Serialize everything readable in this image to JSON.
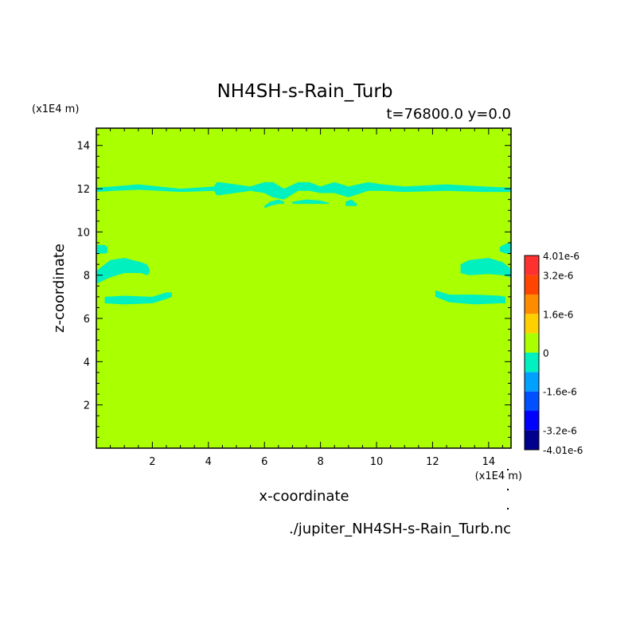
{
  "chart_data": {
    "type": "heatmap",
    "title": "NH4SH-s-Rain_Turb",
    "subtitle": "t=76800.0 y=0.0",
    "xlabel": "x-coordinate",
    "ylabel": "z-coordinate",
    "x_unit": "(x1E4 m)",
    "y_unit": "(x1E4 m)",
    "source_file": "./jupiter_NH4SH-s-Rain_Turb.nc",
    "xlim": [
      0,
      14.8
    ],
    "ylim": [
      0,
      14.8
    ],
    "xticks": [
      "2",
      "4",
      "6",
      "8",
      "10",
      "12",
      "14"
    ],
    "yticks": [
      "2",
      "4",
      "6",
      "8",
      "10",
      "12",
      "14"
    ],
    "background_level": 0,
    "colorbar": {
      "labels": [
        "4.01e-6",
        "3.2e-6",
        "1.6e-6",
        "0",
        "-1.6e-6",
        "-3.2e-6",
        "-4.01e-6"
      ],
      "label_values": [
        4.01e-06,
        3.2e-06,
        1.6e-06,
        0,
        -1.6e-06,
        -3.2e-06,
        -4.01e-06
      ],
      "levels": [
        -4.01e-06,
        -3.2e-06,
        -2.4e-06,
        -1.6e-06,
        -8e-07,
        0,
        8e-07,
        1.6e-06,
        2.4e-06,
        3.2e-06,
        4.01e-06
      ],
      "colors": [
        "#00008f",
        "#0000ff",
        "#0050ff",
        "#00a0ff",
        "#00f0c0",
        "#aaff00",
        "#ffd000",
        "#ff8c00",
        "#ff4500",
        "#ff3030"
      ]
    },
    "regions": [
      {
        "level_color": "#00f0c0",
        "x": [
          0.0,
          0.6,
          1.5,
          3.0,
          4.2,
          4.3,
          4.4,
          5.5,
          6.0,
          6.3,
          6.7,
          7.2,
          7.6,
          8.0,
          8.5,
          9.0,
          9.7,
          10.2,
          11.0,
          12.5,
          13.8,
          14.8
        ],
        "z_upper": [
          12.05,
          12.1,
          12.2,
          12.0,
          12.1,
          12.3,
          12.3,
          12.1,
          12.3,
          12.3,
          12.0,
          12.3,
          12.3,
          12.1,
          12.3,
          12.1,
          12.3,
          12.2,
          12.1,
          12.2,
          12.1,
          12.05
        ],
        "z_lower": [
          11.85,
          11.9,
          11.95,
          11.85,
          11.9,
          11.7,
          11.7,
          11.9,
          11.8,
          11.6,
          11.5,
          11.9,
          11.9,
          11.8,
          11.8,
          11.6,
          11.9,
          11.9,
          11.85,
          11.9,
          11.85,
          11.85
        ]
      },
      {
        "level_color": "#00f0c0",
        "x": [
          6.0,
          6.2,
          6.5,
          6.7
        ],
        "z_upper": [
          11.2,
          11.4,
          11.5,
          11.4
        ],
        "z_lower": [
          11.1,
          11.2,
          11.3,
          11.3
        ]
      },
      {
        "level_color": "#00f0c0",
        "x": [
          7.0,
          7.5,
          8.0,
          8.3
        ],
        "z_upper": [
          11.4,
          11.5,
          11.45,
          11.35
        ],
        "z_lower": [
          11.3,
          11.3,
          11.3,
          11.3
        ]
      },
      {
        "level_color": "#00f0c0",
        "x": [
          8.9,
          9.1,
          9.3
        ],
        "z_upper": [
          11.4,
          11.5,
          11.3
        ],
        "z_lower": [
          11.2,
          11.2,
          11.2
        ]
      },
      {
        "level_color": "#00f0c0",
        "x": [
          0.0,
          0.3,
          0.4
        ],
        "z_upper": [
          9.4,
          9.4,
          9.3
        ],
        "z_lower": [
          9.0,
          9.0,
          9.05
        ]
      },
      {
        "level_color": "#00f0c0",
        "x": [
          0.0,
          0.5,
          1.0,
          1.6,
          1.8,
          1.9
        ],
        "z_upper": [
          8.2,
          8.7,
          8.8,
          8.6,
          8.5,
          8.3
        ],
        "z_lower": [
          7.6,
          7.9,
          8.1,
          8.1,
          8.0,
          8.1
        ]
      },
      {
        "level_color": "#00f0c0",
        "x": [
          0.3,
          1.0,
          2.0,
          2.5,
          2.7
        ],
        "z_upper": [
          7.0,
          7.05,
          7.0,
          7.2,
          7.2
        ],
        "z_lower": [
          6.7,
          6.65,
          6.7,
          6.9,
          7.0
        ]
      },
      {
        "level_color": "#00f0c0",
        "x": [
          14.4,
          14.6,
          14.8
        ],
        "z_upper": [
          9.3,
          9.45,
          9.5
        ],
        "z_lower": [
          9.1,
          9.0,
          9.0
        ]
      },
      {
        "level_color": "#00f0c0",
        "x": [
          13.0,
          13.3,
          14.0,
          14.5,
          14.8
        ],
        "z_upper": [
          8.5,
          8.7,
          8.8,
          8.6,
          8.3
        ],
        "z_lower": [
          8.1,
          8.0,
          8.05,
          8.0,
          7.9
        ]
      },
      {
        "level_color": "#00f0c0",
        "x": [
          12.1,
          12.6,
          13.5,
          14.4,
          14.6
        ],
        "z_upper": [
          7.3,
          7.1,
          7.1,
          7.05,
          7.0
        ],
        "z_lower": [
          7.0,
          6.75,
          6.65,
          6.7,
          6.7
        ]
      }
    ]
  }
}
